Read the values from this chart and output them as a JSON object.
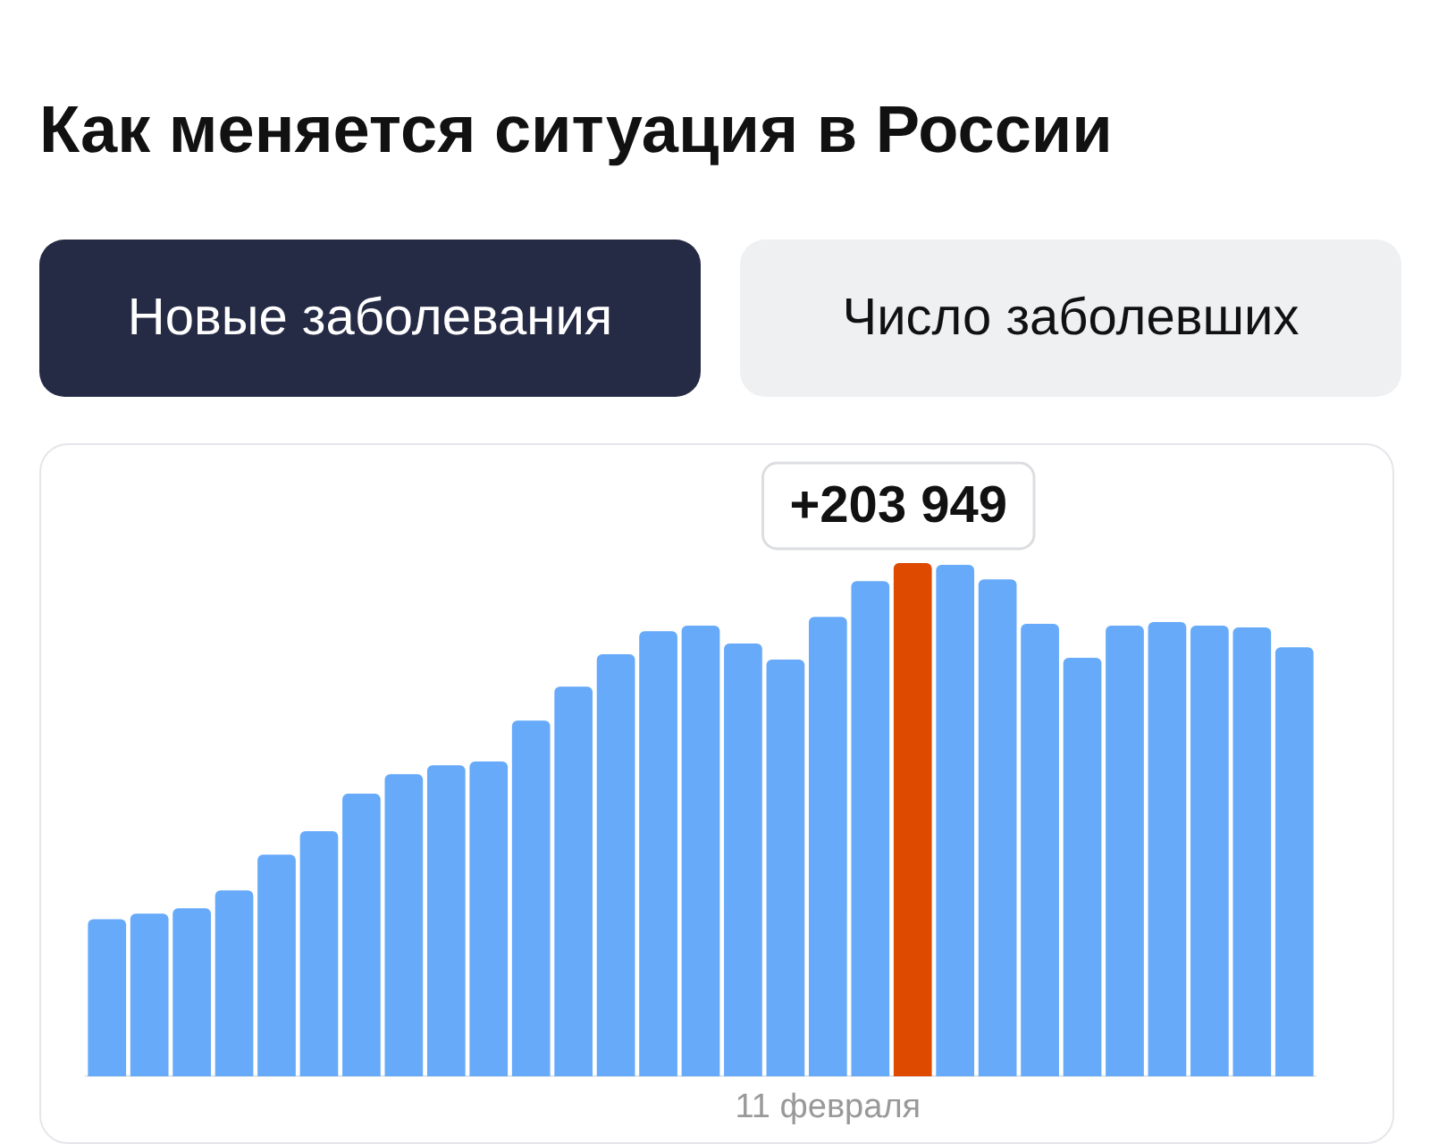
{
  "chart_data": {
    "type": "bar",
    "title": "Как меняется ситуация в России",
    "annotations": [
      "Новые заболевания",
      "Число заболевших"
    ],
    "categories": [
      null,
      null,
      null,
      null,
      null,
      null,
      null,
      null,
      null,
      null,
      null,
      null,
      null,
      null,
      null,
      null,
      null,
      "11 февраля",
      null,
      null,
      null,
      null,
      null,
      null,
      null,
      null,
      null,
      null,
      null
    ],
    "values": [
      62500,
      64700,
      66800,
      73900,
      88100,
      97400,
      112300,
      120100,
      123600,
      125100,
      141400,
      154900,
      167700,
      176900,
      179100,
      172000,
      165600,
      182600,
      196800,
      203949,
      203200,
      197500,
      179800,
      166300,
      179100,
      180500,
      179100,
      178400,
      170500
    ],
    "value_labels": [
      null,
      null,
      null,
      null,
      null,
      null,
      null,
      null,
      null,
      null,
      null,
      null,
      null,
      null,
      null,
      null,
      null,
      null,
      null,
      "+203 949",
      null,
      null,
      null,
      null,
      null,
      null,
      null,
      null,
      null
    ],
    "colors": [
      "#66aaf9",
      "#66aaf9",
      "#66aaf9",
      "#66aaf9",
      "#66aaf9",
      "#66aaf9",
      "#66aaf9",
      "#66aaf9",
      "#66aaf9",
      "#66aaf9",
      "#66aaf9",
      "#66aaf9",
      "#66aaf9",
      "#66aaf9",
      "#66aaf9",
      "#66aaf9",
      "#66aaf9",
      "#66aaf9",
      "#66aaf9",
      "#dd4a00",
      "#66aaf9",
      "#66aaf9",
      "#66aaf9",
      "#66aaf9",
      "#66aaf9",
      "#66aaf9",
      "#66aaf9",
      "#66aaf9",
      "#66aaf9"
    ],
    "grid": false,
    "legend": false
  }
}
